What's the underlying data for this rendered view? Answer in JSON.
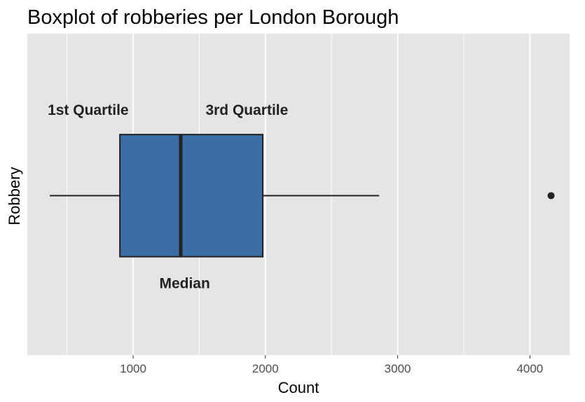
{
  "chart_data": {
    "type": "boxplot",
    "title": "Boxplot of robberies per London Borough",
    "xlabel": "Count",
    "ylabel": "Robbery",
    "xlim": [
      200,
      4300
    ],
    "x_ticks": [
      1000,
      2000,
      3000,
      4000
    ],
    "grid": true,
    "box": {
      "whisker_low": 370,
      "q1": 900,
      "median": 1360,
      "q3": 1980,
      "whisker_high": 2860,
      "outliers": [
        4160
      ],
      "fill": "#3a6ea5",
      "stroke": "#222222"
    },
    "annotations": [
      {
        "text": "1st Quartile",
        "x": 660,
        "pos": "above"
      },
      {
        "text": "3rd Quartile",
        "x": 1860,
        "pos": "above"
      },
      {
        "text": "Median",
        "x": 1390,
        "pos": "below"
      }
    ],
    "colors": {
      "panel": "#e5e5e5",
      "grid": "#ffffff"
    }
  }
}
